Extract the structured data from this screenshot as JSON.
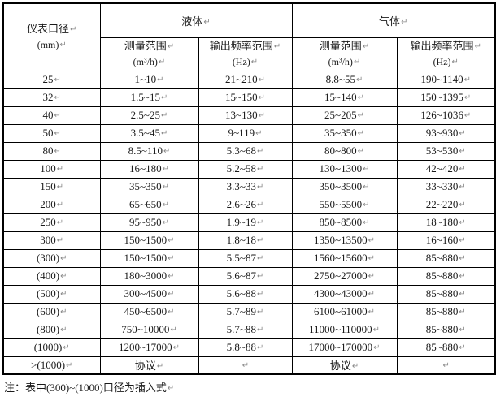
{
  "marks": {
    "paragraph": "↵"
  },
  "table": {
    "header": {
      "col_diameter_line1": "仪表口径",
      "col_diameter_line2": "(mm)",
      "group_liquid": "液体",
      "group_gas": "气体",
      "measure_range_label": "测量范围",
      "measure_range_unit": "(m³/h)",
      "freq_range_label": "输出频率范围",
      "freq_range_unit": "(Hz)"
    },
    "chart_data": {
      "type": "table",
      "columns": [
        "仪表口径(mm)",
        "液体 测量范围(m³/h)",
        "液体 输出频率范围(Hz)",
        "气体 测量范围(m³/h)",
        "气体 输出频率范围(Hz)"
      ],
      "rows": [
        [
          "25",
          "1~10",
          "21~210",
          "8.8~55",
          "190~1140"
        ],
        [
          "32",
          "1.5~15",
          "15~150",
          "15~140",
          "150~1395"
        ],
        [
          "40",
          "2.5~25",
          "13~130",
          "25~205",
          "126~1036"
        ],
        [
          "50",
          "3.5~45",
          "9~119",
          "35~350",
          "93~930"
        ],
        [
          "80",
          "8.5~110",
          "5.3~68",
          "80~800",
          "53~530"
        ],
        [
          "100",
          "16~180",
          "5.2~58",
          "130~1300",
          "42~420"
        ],
        [
          "150",
          "35~350",
          "3.3~33",
          "350~3500",
          "33~330"
        ],
        [
          "200",
          "65~650",
          "2.6~26",
          "550~5500",
          "22~220"
        ],
        [
          "250",
          "95~950",
          "1.9~19",
          "850~8500",
          "18~180"
        ],
        [
          "300",
          "150~1500",
          "1.8~18",
          "1350~13500",
          "16~160"
        ],
        [
          "(300)",
          "150~1500",
          "5.5~87",
          "1560~15600",
          "85~880"
        ],
        [
          "(400)",
          "180~3000",
          "5.6~87",
          "2750~27000",
          "85~880"
        ],
        [
          "(500)",
          "300~4500",
          "5.6~88",
          "4300~43000",
          "85~880"
        ],
        [
          "(600)",
          "450~6500",
          "5.7~89",
          "6100~61000",
          "85~880"
        ],
        [
          "(800)",
          "750~10000",
          "5.7~88",
          "11000~110000",
          "85~880"
        ],
        [
          "(1000)",
          "1200~17000",
          "5.8~88",
          "17000~170000",
          "85~880"
        ],
        [
          ">(1000)",
          "协议",
          "",
          "协议",
          ""
        ]
      ]
    }
  },
  "note": "注：表中(300)~(1000)口径为插入式",
  "colors": {
    "border": "#000000",
    "text": "#1a1a1a",
    "paragraph_mark": "#8a8a8a",
    "background": "#ffffff"
  }
}
